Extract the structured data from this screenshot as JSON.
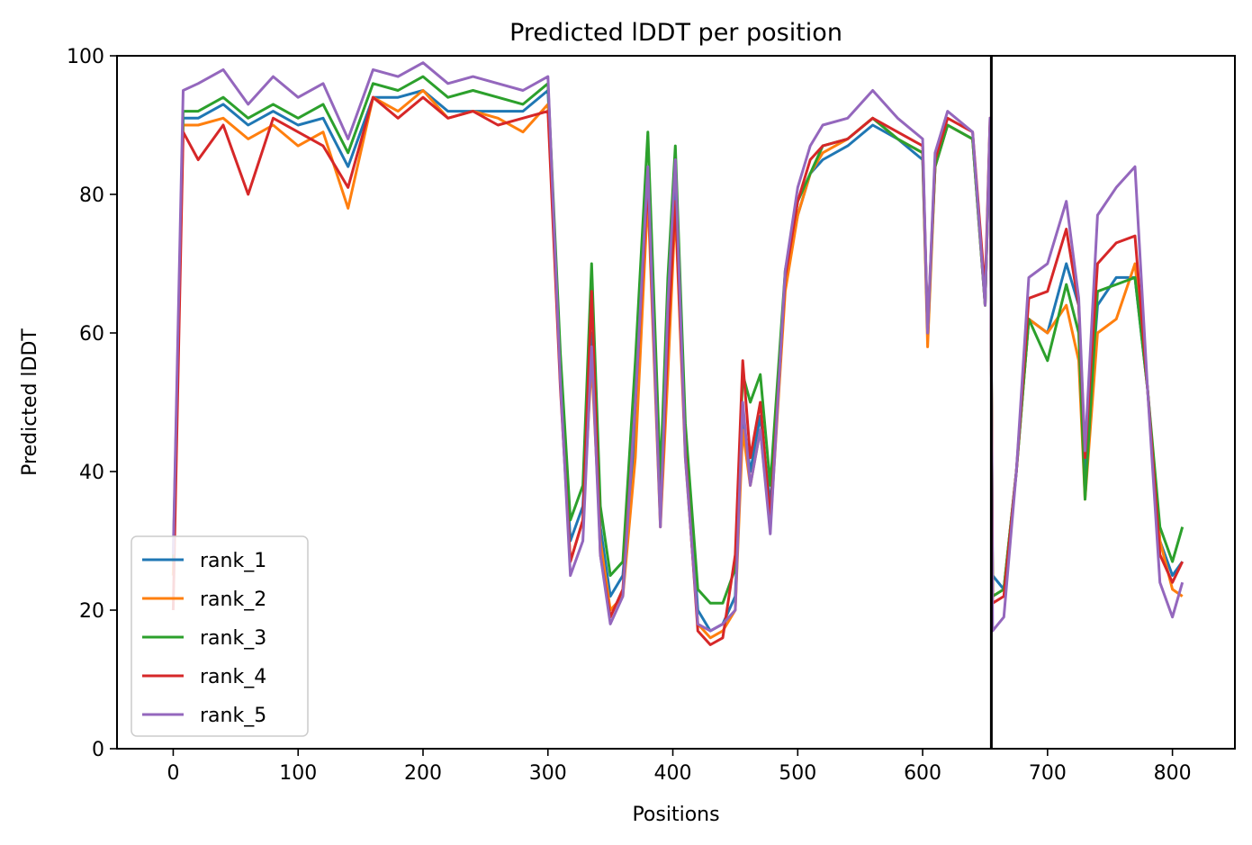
{
  "chart_data": {
    "type": "line",
    "title": "Predicted lDDT per position",
    "xlabel": "Positions",
    "ylabel": "Predicted lDDT",
    "xlim": [
      -45,
      850
    ],
    "ylim": [
      0,
      100
    ],
    "xticks": [
      0,
      100,
      200,
      300,
      400,
      500,
      600,
      700,
      800
    ],
    "yticks": [
      0,
      20,
      40,
      60,
      80,
      100
    ],
    "grid": false,
    "legend_position": "lower-left",
    "chain_break_x": 655,
    "series": [
      {
        "name": "rank_1",
        "color": "#1f77b4"
      },
      {
        "name": "rank_2",
        "color": "#ff7f0e"
      },
      {
        "name": "rank_3",
        "color": "#2ca02c"
      },
      {
        "name": "rank_4",
        "color": "#d62728"
      },
      {
        "name": "rank_5",
        "color": "#9467bd"
      }
    ],
    "x": [
      0,
      8,
      20,
      40,
      60,
      80,
      100,
      120,
      140,
      160,
      180,
      200,
      220,
      240,
      260,
      280,
      300,
      310,
      318,
      328,
      335,
      342,
      350,
      360,
      370,
      380,
      390,
      396,
      402,
      410,
      420,
      430,
      440,
      450,
      456,
      462,
      470,
      478,
      490,
      500,
      510,
      520,
      540,
      560,
      580,
      600,
      604,
      610,
      620,
      640,
      650,
      654,
      656,
      665,
      675,
      685,
      700,
      715,
      725,
      730,
      740,
      755,
      770,
      780,
      790,
      800,
      808
    ],
    "base": [
      25,
      92,
      93,
      94,
      90,
      93,
      91,
      92,
      84,
      95,
      94,
      96,
      93,
      94,
      93,
      92,
      95,
      55,
      30,
      35,
      62,
      32,
      22,
      25,
      48,
      84,
      36,
      62,
      83,
      45,
      20,
      17,
      18,
      22,
      48,
      40,
      48,
      35,
      68,
      78,
      84,
      87,
      88,
      91,
      88,
      86,
      60,
      84,
      90,
      88,
      64,
      90,
      22,
      23,
      40,
      62,
      62,
      70,
      60,
      40,
      64,
      66,
      70,
      52,
      30,
      25,
      27
    ],
    "offsets": [
      [
        0,
        -1,
        -2,
        -1,
        0,
        -1,
        -1,
        -1,
        0,
        -1,
        0,
        -1,
        -1,
        -2,
        -1,
        0,
        0,
        0,
        0,
        0,
        -2,
        0,
        0,
        0,
        -2,
        0,
        0,
        -2,
        -1,
        0,
        0,
        0,
        0,
        0,
        0,
        0,
        0,
        0,
        0,
        -1,
        -1,
        -2,
        -1,
        -1,
        0,
        -1,
        0,
        0,
        0,
        0,
        0,
        0,
        3,
        0,
        0,
        0,
        -2,
        0,
        4,
        0,
        0,
        2,
        -2,
        0,
        0,
        0,
        0
      ],
      [
        0,
        -2,
        -3,
        -3,
        -2,
        -3,
        -4,
        -3,
        -6,
        -1,
        -2,
        -1,
        -2,
        -2,
        -2,
        -3,
        -2,
        -2,
        -3,
        -2,
        -6,
        -2,
        -2,
        -3,
        -6,
        -4,
        -4,
        -8,
        -5,
        -3,
        -2,
        -1,
        -1,
        -2,
        -2,
        -2,
        -2,
        -3,
        -2,
        -1,
        -1,
        -1,
        0,
        0,
        0,
        0,
        -2,
        0,
        0,
        0,
        0,
        0,
        0,
        0,
        0,
        0,
        -2,
        -6,
        -4,
        -4,
        -4,
        -4,
        0,
        0,
        0,
        -2,
        -5
      ],
      [
        2,
        0,
        -1,
        0,
        1,
        0,
        0,
        1,
        2,
        1,
        1,
        1,
        1,
        1,
        1,
        1,
        1,
        2,
        3,
        3,
        8,
        3,
        3,
        2,
        8,
        5,
        3,
        6,
        4,
        2,
        3,
        4,
        3,
        4,
        6,
        10,
        6,
        3,
        1,
        1,
        -1,
        0,
        0,
        0,
        0,
        0,
        0,
        0,
        0,
        0,
        0,
        0,
        0,
        0,
        0,
        0,
        -6,
        -3,
        0,
        -4,
        2,
        1,
        -2,
        0,
        2,
        2,
        5
      ],
      [
        -5,
        -3,
        -8,
        -4,
        -10,
        -2,
        -2,
        -5,
        -3,
        -1,
        -3,
        -2,
        -2,
        -2,
        -3,
        -1,
        -3,
        -3,
        -3,
        -2,
        4,
        -4,
        -3,
        -2,
        2,
        -2,
        -3,
        -3,
        -4,
        -2,
        -3,
        -2,
        -2,
        6,
        8,
        2,
        2,
        -2,
        0,
        1,
        1,
        0,
        0,
        0,
        1,
        1,
        0,
        1,
        1,
        1,
        2,
        1,
        -1,
        -1,
        0,
        3,
        4,
        5,
        4,
        2,
        6,
        7,
        4,
        0,
        -2,
        -1,
        0
      ],
      [
        3,
        3,
        3,
        4,
        3,
        4,
        3,
        4,
        4,
        3,
        3,
        3,
        3,
        3,
        3,
        3,
        2,
        -2,
        -5,
        -5,
        -4,
        -4,
        -4,
        -3,
        2,
        0,
        -4,
        2,
        2,
        -3,
        -2,
        0,
        0,
        -2,
        2,
        -2,
        -2,
        -4,
        1,
        3,
        3,
        3,
        3,
        4,
        3,
        2,
        0,
        2,
        2,
        1,
        0,
        1,
        -5,
        -4,
        0,
        6,
        8,
        9,
        5,
        3,
        13,
        15,
        14,
        0,
        -6,
        -6,
        -3
      ]
    ]
  }
}
